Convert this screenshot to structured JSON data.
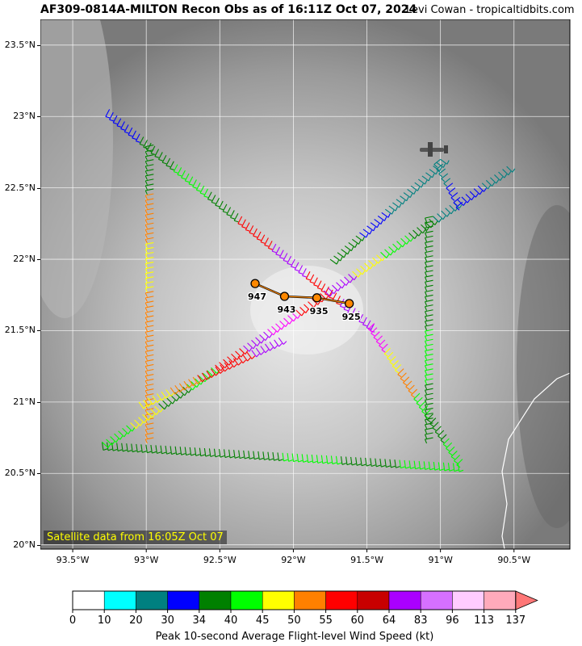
{
  "header": {
    "title": "AF309-0814A-MILTON Recon Obs as of 16:11Z Oct 07, 2024",
    "credit": "Levi Cowan - tropicaltidbits.com"
  },
  "satellite_note": "Satellite data from 16:05Z Oct 07",
  "map": {
    "lon_range": [
      -93.72,
      -90.12
    ],
    "lat_range": [
      19.97,
      23.68
    ],
    "lon_ticks": [
      {
        "v": -93.5,
        "label": "93.5°W"
      },
      {
        "v": -93.0,
        "label": "93°W"
      },
      {
        "v": -92.5,
        "label": "92.5°W"
      },
      {
        "v": -92.0,
        "label": "92°W"
      },
      {
        "v": -91.5,
        "label": "91.5°W"
      },
      {
        "v": -91.0,
        "label": "91°W"
      },
      {
        "v": -90.5,
        "label": "90.5°W"
      }
    ],
    "lat_ticks": [
      {
        "v": 20.0,
        "label": "20°N"
      },
      {
        "v": 20.5,
        "label": "20.5°N"
      },
      {
        "v": 21.0,
        "label": "21°N"
      },
      {
        "v": 21.5,
        "label": "21.5°N"
      },
      {
        "v": 22.0,
        "label": "22°N"
      },
      {
        "v": 22.5,
        "label": "22.5°N"
      },
      {
        "v": 23.0,
        "label": "23°N"
      },
      {
        "v": 23.5,
        "label": "23.5°N"
      }
    ],
    "center_fixes": [
      {
        "lon": -92.26,
        "lat": 21.83,
        "pressure": "947"
      },
      {
        "lon": -92.06,
        "lat": 21.74,
        "pressure": "943"
      },
      {
        "lon": -91.84,
        "lat": 21.73,
        "pressure": "935"
      },
      {
        "lon": -91.62,
        "lat": 21.69,
        "pressure": "925"
      }
    ],
    "flight_legs": [
      {
        "from": [
          -93.25,
          23.05
        ],
        "to": [
          -91.45,
          21.55
        ],
        "colors": [
          "#0000ff",
          "#008000",
          "#00ff00",
          "#008000",
          "#ff0000",
          "#aa00ff",
          "#ff0000",
          "#aa00ff"
        ]
      },
      {
        "from": [
          -91.45,
          21.55
        ],
        "to": [
          -90.85,
          20.6
        ],
        "colors": [
          "#ff00ff",
          "#ffff00",
          "#ff8000",
          "#00ff00",
          "#008000",
          "#00ff00"
        ]
      },
      {
        "from": [
          -92.95,
          22.8
        ],
        "to": [
          -92.95,
          20.75
        ],
        "colors": [
          "#008000",
          "#ff8000",
          "#ffff00",
          "#ff8000",
          "#ff8000",
          "#ff8000"
        ]
      },
      {
        "from": [
          -93.3,
          20.72
        ],
        "to": [
          -90.88,
          20.57
        ],
        "colors": [
          "#008000",
          "#008000",
          "#008000",
          "#00ff00",
          "#008000",
          "#00ff00"
        ]
      },
      {
        "from": [
          -93.3,
          20.72
        ],
        "to": [
          -91.05,
          22.3
        ],
        "colors": [
          "#00ff00",
          "#ffff00",
          "#008000",
          "#00ff00",
          "#ff0000",
          "#aa00ff",
          "#ff00ff",
          "#ff0000",
          "#aa00ff",
          "#ffff00",
          "#00ff00",
          "#008000"
        ]
      },
      {
        "from": [
          -93.05,
          21.0
        ],
        "to": [
          -92.1,
          21.45
        ],
        "colors": [
          "#ffff00",
          "#ff8000",
          "#ff0000",
          "#ff0000",
          "#aa00ff"
        ]
      },
      {
        "from": [
          -91.05,
          22.3
        ],
        "to": [
          -90.55,
          22.65
        ],
        "colors": [
          "#008080",
          "#0000ff",
          "#008080"
        ]
      },
      {
        "from": [
          -91.05,
          22.3
        ],
        "to": [
          -91.05,
          20.75
        ],
        "colors": [
          "#008000",
          "#008000",
          "#00ff00",
          "#008000"
        ]
      },
      {
        "from": [
          -91.75,
          22.0
        ],
        "to": [
          -91.0,
          22.7
        ],
        "colors": [
          "#008000",
          "#0000ff",
          "#008080",
          "#008080"
        ]
      },
      {
        "from": [
          -91.0,
          22.7
        ],
        "to": [
          -90.85,
          22.4
        ],
        "colors": [
          "#008080",
          "#0000ff"
        ]
      }
    ]
  },
  "colorbar": {
    "label": "Peak 10-second Average Flight-level Wind Speed (kt)",
    "colors": [
      "#ffffff",
      "#00ffff",
      "#008080",
      "#0000ff",
      "#008000",
      "#00ff00",
      "#ffff00",
      "#ff8000",
      "#ff0000",
      "#c80000",
      "#aa00ff",
      "#d670ff",
      "#ffccff",
      "#ffaabb"
    ],
    "extend_color": "#ff7777",
    "tick_labels": [
      "0",
      "10",
      "20",
      "30",
      "34",
      "40",
      "45",
      "50",
      "55",
      "60",
      "64",
      "83",
      "96",
      "113",
      "137"
    ]
  }
}
